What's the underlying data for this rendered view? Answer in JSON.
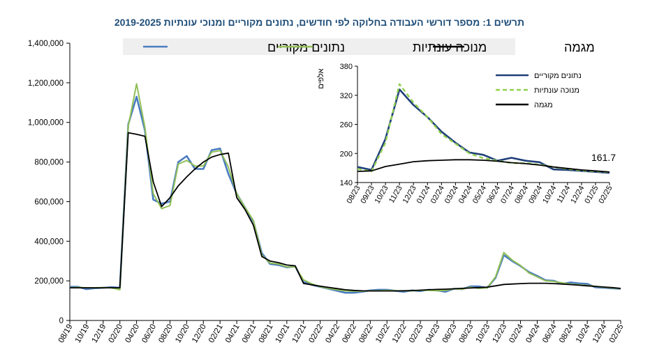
{
  "chart_data": [
    {
      "type": "line",
      "title": "תרשים 1: מספר דורשי העבודה בחלוקה לפי חודשים, נתונים מקוריים ומנוכי עונתיות 2019-2025",
      "ylim": [
        0,
        1400000
      ],
      "yticks": [
        0,
        200000,
        400000,
        600000,
        800000,
        1000000,
        1200000,
        1400000
      ],
      "ytick_labels": [
        "0",
        "200,000",
        "400,000",
        "600,000",
        "800,000",
        "1,000,000",
        "1,200,000",
        "1,400,000"
      ],
      "categories": [
        "08/19",
        "09/19",
        "10/19",
        "11/19",
        "12/19",
        "01/20",
        "02/20",
        "03/20",
        "04/20",
        "05/20",
        "06/20",
        "07/20",
        "08/20",
        "09/20",
        "10/20",
        "11/20",
        "12/20",
        "01/21",
        "02/21",
        "03/21",
        "04/21",
        "05/21",
        "06/21",
        "07/21",
        "08/21",
        "09/21",
        "10/21",
        "11/21",
        "12/21",
        "01/22",
        "02/22",
        "03/22",
        "04/22",
        "05/22",
        "06/22",
        "07/22",
        "08/22",
        "09/22",
        "10/22",
        "11/22",
        "12/22",
        "01/23",
        "02/23",
        "03/23",
        "04/23",
        "05/23",
        "06/23",
        "07/23",
        "08/23",
        "09/23",
        "10/23",
        "11/23",
        "12/23",
        "01/24",
        "02/24",
        "03/24",
        "04/24",
        "05/24",
        "06/24",
        "07/24",
        "08/24",
        "09/24",
        "10/24",
        "11/24",
        "12/24",
        "01/25",
        "02/25"
      ],
      "xtick_labels": [
        "08/19",
        "10/19",
        "12/19",
        "02/20",
        "04/20",
        "06/20",
        "08/20",
        "10/20",
        "12/20",
        "02/21",
        "04/21",
        "06/21",
        "08/21",
        "10/21",
        "12/21",
        "02/22",
        "04/22",
        "06/22",
        "08/22",
        "10/22",
        "12/22",
        "02/23",
        "04/23",
        "06/23",
        "08/23",
        "10/23",
        "12/23",
        "02/24",
        "04/24",
        "06/24",
        "08/24",
        "10/24",
        "12/24",
        "02/25"
      ],
      "legend": [
        "נתונים מקוריים",
        "מנוכה עונתיות",
        "מגמה"
      ],
      "series": [
        {
          "name": "נתונים מקוריים",
          "color": "#4a7cc0",
          "values": [
            170000,
            170000,
            158000,
            163000,
            165000,
            168000,
            165000,
            990000,
            1130000,
            960000,
            610000,
            590000,
            600000,
            800000,
            830000,
            765000,
            765000,
            860000,
            868000,
            740000,
            640000,
            570000,
            500000,
            340000,
            285000,
            280000,
            268000,
            273000,
            195000,
            180000,
            170000,
            160000,
            150000,
            140000,
            140000,
            145000,
            152000,
            155000,
            155000,
            150000,
            145000,
            152000,
            148000,
            155000,
            152000,
            145000,
            160000,
            158000,
            172000,
            172000,
            165000,
            215000,
            330000,
            300000,
            275000,
            245000,
            225000,
            203000,
            200000,
            185000,
            192000,
            187000,
            185000,
            167000,
            165000,
            162000,
            160000
          ]
        },
        {
          "name": "מנוכה עונתיות",
          "color": "#92c057",
          "values": [
            165000,
            167000,
            165000,
            165000,
            166000,
            165000,
            155000,
            980000,
            1195000,
            975000,
            640000,
            565000,
            580000,
            790000,
            808000,
            780000,
            780000,
            850000,
            858000,
            775000,
            640000,
            570000,
            505000,
            330000,
            290000,
            285000,
            270000,
            270000,
            205000,
            185000,
            170000,
            162000,
            155000,
            150000,
            148000,
            148000,
            150000,
            150000,
            152000,
            150000,
            150000,
            150000,
            152000,
            152000,
            150000,
            152000,
            160000,
            158000,
            168000,
            162000,
            165000,
            220000,
            343000,
            305000,
            278000,
            240000,
            220000,
            200000,
            197000,
            190000,
            183000,
            180000,
            177000,
            172000,
            168000,
            164000,
            161700
          ]
        },
        {
          "name": "מגמה",
          "color": "#000000",
          "values": [
            165000,
            165000,
            165000,
            165000,
            165000,
            165000,
            165000,
            948000,
            940000,
            930000,
            700000,
            575000,
            620000,
            680000,
            725000,
            765000,
            800000,
            825000,
            838000,
            845000,
            620000,
            560000,
            480000,
            323000,
            300000,
            292000,
            280000,
            276000,
            187000,
            180000,
            173000,
            167000,
            161000,
            155000,
            152000,
            150000,
            149000,
            149000,
            149000,
            149000,
            150000,
            151000,
            153000,
            155000,
            157000,
            158000,
            160000,
            162000,
            164000,
            166000,
            168000,
            175000,
            182000,
            184000,
            186000,
            188000,
            188000,
            188000,
            186000,
            184000,
            181000,
            178000,
            175000,
            172000,
            169000,
            166000,
            161700
          ]
        }
      ]
    },
    {
      "type": "line",
      "ylabel": "אלפים",
      "ylim": [
        140,
        380
      ],
      "yticks": [
        140,
        200,
        260,
        320,
        380
      ],
      "annotation": "161.7",
      "categories": [
        "08/23",
        "09/23",
        "10/23",
        "11/23",
        "12/23",
        "01/24",
        "02/24",
        "03/24",
        "04/24",
        "05/24",
        "06/24",
        "07/24",
        "08/24",
        "09/24",
        "10/24",
        "11/24",
        "12/24",
        "01/25",
        "02/25"
      ],
      "legend": [
        "נתונים מקוריים",
        "מנוכה עונתיות",
        "מגמה"
      ],
      "series": [
        {
          "name": "נתונים מקוריים",
          "color": "#1f3f7a",
          "values": [
            172,
            166,
            230,
            332,
            300,
            275,
            245,
            222,
            202,
            197,
            185,
            191,
            185,
            182,
            167,
            166,
            164,
            162,
            160
          ]
        },
        {
          "name": "מנוכה עונתיות",
          "color": "#92d050",
          "values": [
            168,
            163,
            222,
            343,
            305,
            275,
            240,
            220,
            200,
            190,
            185,
            180,
            180,
            177,
            172,
            168,
            165,
            163,
            161.7
          ]
        },
        {
          "name": "מגמה",
          "color": "#000000",
          "values": [
            163,
            164,
            173,
            178,
            183,
            185,
            186,
            187,
            187,
            186,
            184,
            181,
            179,
            176,
            172,
            169,
            166,
            164,
            161.7
          ]
        }
      ]
    }
  ]
}
